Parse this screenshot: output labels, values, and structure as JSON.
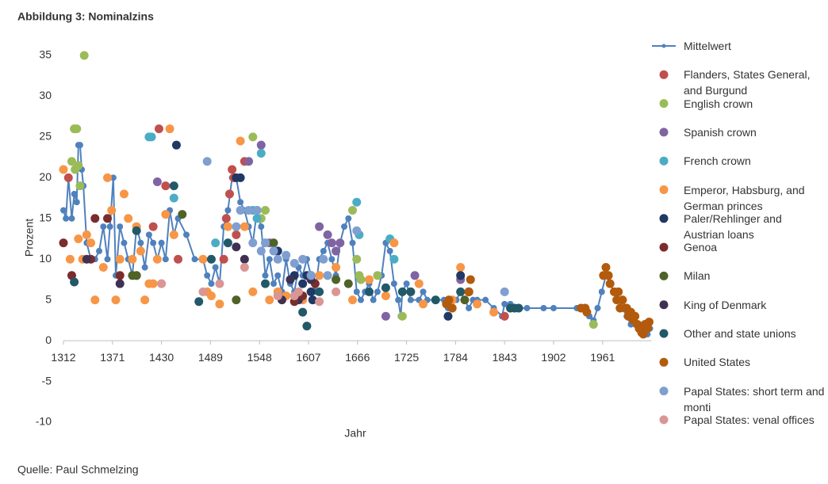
{
  "chart_data": {
    "type": "scatter",
    "title": "Abbildung 3: Nominalzins",
    "source": "Quelle: Paul Schmelzing",
    "x_label": "Jahr",
    "y_label": "Prozent",
    "xlim": [
      1312,
      2020
    ],
    "xticks": [
      1312,
      1371,
      1430,
      1489,
      1548,
      1607,
      1666,
      1725,
      1784,
      1843,
      1902,
      1961
    ],
    "ylim": [
      -10,
      35
    ],
    "yticks": [
      -10,
      -5,
      0,
      5,
      10,
      15,
      20,
      25,
      30,
      35
    ],
    "grid": false,
    "legend": "right",
    "series": [
      {
        "name": "Mittelwert",
        "color": "#4f81bd",
        "kind": "line",
        "x": [
          1312,
          1315,
          1318,
          1322,
          1325,
          1328,
          1330,
          1332,
          1334,
          1336,
          1340,
          1345,
          1350,
          1355,
          1360,
          1365,
          1368,
          1372,
          1375,
          1380,
          1385,
          1390,
          1395,
          1400,
          1405,
          1410,
          1415,
          1420,
          1425,
          1430,
          1435,
          1440,
          1445,
          1450,
          1460,
          1470,
          1480,
          1485,
          1490,
          1495,
          1500,
          1505,
          1510,
          1515,
          1520,
          1525,
          1530,
          1535,
          1540,
          1545,
          1550,
          1555,
          1560,
          1565,
          1570,
          1575,
          1580,
          1585,
          1590,
          1595,
          1600,
          1605,
          1610,
          1615,
          1620,
          1625,
          1630,
          1635,
          1640,
          1645,
          1650,
          1655,
          1660,
          1665,
          1670,
          1675,
          1680,
          1685,
          1690,
          1695,
          1700,
          1705,
          1710,
          1715,
          1718,
          1720,
          1725,
          1730,
          1740,
          1745,
          1750,
          1760,
          1770,
          1775,
          1780,
          1785,
          1790,
          1795,
          1800,
          1805,
          1810,
          1820,
          1830,
          1840,
          1843,
          1850,
          1855,
          1870,
          1890,
          1902,
          1930,
          1940,
          1945,
          1950,
          1955,
          1960,
          1965,
          1970,
          1975,
          1980,
          1985,
          1990,
          1995,
          2000,
          2005,
          2010,
          2015,
          2018
        ],
        "values": [
          16,
          15,
          20,
          15,
          18,
          17,
          24,
          24,
          21,
          19,
          12,
          10,
          10,
          11,
          14,
          10,
          14,
          20,
          8,
          14,
          12,
          10,
          8,
          14,
          12,
          9,
          13,
          12,
          10,
          12,
          10,
          16,
          13,
          15,
          13,
          10,
          10,
          8,
          7,
          9,
          7,
          14,
          16,
          20,
          20,
          17,
          16,
          14,
          12,
          16,
          14,
          8,
          10,
          7,
          8,
          6,
          10,
          7,
          6,
          9,
          8,
          10,
          8,
          6,
          10,
          11,
          12,
          10,
          8,
          12,
          14,
          15,
          12,
          6,
          5,
          6,
          7,
          5,
          6,
          8,
          12,
          11,
          7,
          5,
          3,
          6,
          7,
          5,
          5,
          6,
          5,
          5,
          5,
          4,
          5,
          5,
          6,
          5,
          4,
          5,
          5,
          5,
          4,
          3,
          4.5,
          4.5,
          4,
          4,
          4,
          4,
          4,
          4,
          3,
          2.5,
          4,
          6,
          8,
          7,
          6,
          5,
          4,
          3,
          2,
          2,
          1.5,
          1,
          0.8,
          1.5
        ]
      },
      {
        "name": "Flanders, States General, and Burgund",
        "color": "#c0504d",
        "x": [
          1318,
          1420,
          1427,
          1435,
          1450,
          1505,
          1508,
          1512,
          1515,
          1517,
          1518,
          1520,
          1530,
          1545,
          1843
        ],
        "values": [
          20,
          14,
          26,
          19,
          10,
          10,
          15,
          18,
          21,
          20,
          20,
          13,
          22,
          16,
          3
        ]
      },
      {
        "name": "English crown",
        "color": "#9bbb59",
        "x": [
          1322,
          1325,
          1326,
          1328,
          1330,
          1332,
          1337,
          1400,
          1540,
          1550,
          1555,
          1660,
          1665,
          1668,
          1670,
          1690,
          1720,
          1950
        ],
        "values": [
          22,
          26,
          21,
          26,
          21.5,
          19,
          35,
          8,
          25,
          15,
          16,
          16,
          10,
          8,
          7.5,
          8,
          3,
          2
        ]
      },
      {
        "name": "Spanish crown",
        "color": "#8064a2",
        "x": [
          1425,
          1535,
          1550,
          1560,
          1620,
          1630,
          1635,
          1640,
          1645,
          1700,
          1735,
          1790
        ],
        "values": [
          19.5,
          22,
          24,
          12,
          14,
          13,
          12,
          11,
          12,
          3,
          8,
          7.5
        ]
      },
      {
        "name": "French crown",
        "color": "#4bacc6",
        "x": [
          1415,
          1418,
          1445,
          1495,
          1540,
          1545,
          1550,
          1555,
          1665,
          1668,
          1705,
          1710
        ],
        "values": [
          25,
          25,
          17.5,
          12,
          16,
          15,
          23,
          12,
          17,
          13,
          12.5,
          10
        ]
      },
      {
        "name": "Emperor, Habsburg, and German princes",
        "color": "#f79646",
        "x": [
          1312,
          1320,
          1330,
          1335,
          1340,
          1345,
          1350,
          1360,
          1365,
          1370,
          1375,
          1380,
          1385,
          1390,
          1395,
          1400,
          1405,
          1410,
          1415,
          1420,
          1425,
          1430,
          1435,
          1440,
          1445,
          1480,
          1485,
          1490,
          1500,
          1510,
          1525,
          1530,
          1540,
          1560,
          1570,
          1580,
          1600,
          1620,
          1640,
          1660,
          1680,
          1700,
          1710,
          1730,
          1740,
          1745,
          1780,
          1790,
          1800,
          1810,
          1830
        ],
        "values": [
          21,
          10,
          12.5,
          10,
          13,
          12,
          5,
          9,
          20,
          16,
          5,
          10,
          18,
          15,
          10,
          14,
          11,
          5,
          7,
          7,
          10,
          7,
          15.5,
          26,
          13,
          10,
          6,
          5.5,
          4.5,
          14,
          24.5,
          14,
          6,
          5,
          6,
          5.5,
          5,
          8,
          9,
          5,
          7.5,
          5.5,
          12,
          6,
          7,
          4.5,
          5,
          9,
          6,
          4.5,
          3.5
        ]
      },
      {
        "name": "Paler/Rehlinger and Austrian loans",
        "color": "#1f3864",
        "x": [
          1448,
          1520,
          1525,
          1570,
          1590,
          1595,
          1600,
          1605,
          1610,
          1612,
          1775,
          1790,
          1800
        ],
        "values": [
          24,
          20,
          20,
          11,
          8,
          5,
          7,
          8,
          6,
          5,
          3,
          8,
          6
        ]
      },
      {
        "name": "Genoa",
        "color": "#7b2c2c",
        "x": [
          1312,
          1322,
          1345,
          1350,
          1365,
          1380,
          1590,
          1600,
          1610,
          1615
        ],
        "values": [
          12,
          8,
          10,
          15,
          15,
          8,
          4.8,
          5.5,
          8,
          7
        ]
      },
      {
        "name": "Milan",
        "color": "#4f6228",
        "x": [
          1395,
          1400,
          1455,
          1520,
          1565,
          1640,
          1655,
          1795
        ],
        "values": [
          8,
          8,
          15.5,
          5,
          12,
          7.5,
          7,
          5
        ]
      },
      {
        "name": "King of Denmark",
        "color": "#3f3151",
        "x": [
          1340,
          1380,
          1520,
          1530,
          1575,
          1585,
          1610
        ],
        "values": [
          10,
          7,
          11.5,
          10,
          5,
          7.5,
          7.5
        ]
      },
      {
        "name": "Other and state unions",
        "color": "#215968",
        "x": [
          1325,
          1400,
          1445,
          1475,
          1490,
          1510,
          1555,
          1600,
          1605,
          1620,
          1680,
          1700,
          1720,
          1730,
          1760,
          1790,
          1850,
          1855,
          1860
        ],
        "values": [
          7.2,
          13.5,
          19,
          4.8,
          10,
          12,
          7,
          3.5,
          1.8,
          6,
          6,
          6.5,
          6,
          6,
          5,
          6,
          4,
          4,
          4
        ]
      },
      {
        "name": "United States",
        "color": "#b35a0c",
        "x": [
          1773,
          1776,
          1780,
          1800,
          1802,
          1935,
          1940,
          1942,
          1962,
          1965,
          1968,
          1970,
          1975,
          1978,
          1980,
          1982,
          1985,
          1988,
          1990,
          1992,
          1995,
          1998,
          2000,
          2003,
          2005,
          2008,
          2010,
          2012,
          2015,
          2017
        ],
        "values": [
          4.5,
          5,
          4,
          6,
          7.5,
          4,
          4,
          3.5,
          8,
          9,
          8,
          7,
          6,
          5,
          6,
          4,
          5,
          4,
          4,
          3,
          3.5,
          2.5,
          3,
          2,
          1.5,
          1,
          0.8,
          2,
          1.5,
          2.3
        ]
      },
      {
        "name": "Papal States: short term and monti",
        "color": "#7f9fd0",
        "x": [
          1485,
          1520,
          1525,
          1535,
          1540,
          1545,
          1550,
          1555,
          1565,
          1570,
          1580,
          1590,
          1600,
          1610,
          1625,
          1630,
          1665,
          1843
        ],
        "values": [
          22,
          14,
          16,
          16,
          12,
          16,
          11,
          12,
          11,
          10,
          10.5,
          9.5,
          10,
          8,
          10,
          8,
          13.5,
          6
        ]
      },
      {
        "name": "Papal States: venal offices",
        "color": "#d99694",
        "x": [
          1430,
          1480,
          1500,
          1530,
          1570,
          1590,
          1595,
          1620,
          1640
        ],
        "values": [
          7,
          6,
          7,
          9,
          5.5,
          5.5,
          6,
          4.8,
          6
        ]
      }
    ]
  }
}
